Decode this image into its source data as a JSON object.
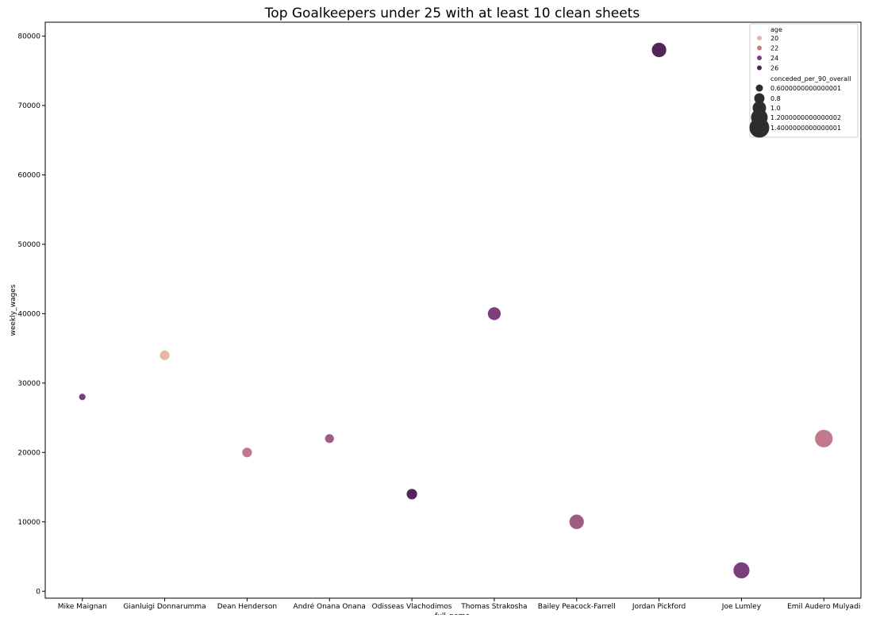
{
  "chart_data": {
    "type": "scatter",
    "title": "Top Goalkeepers under 25 with at least 10 clean sheets",
    "xlabel": "full_name",
    "ylabel": "weekly_wages",
    "ylim": [
      -1000,
      82000
    ],
    "yticks": [
      0,
      10000,
      20000,
      30000,
      40000,
      50000,
      60000,
      70000,
      80000
    ],
    "ytick_labels": [
      "0",
      "10000",
      "20000",
      "30000",
      "40000",
      "50000",
      "60000",
      "70000",
      "80000"
    ],
    "categories": [
      "Mike Maignan",
      "Gianluigi Donnarumma",
      "Dean Henderson",
      "André Onana Onana",
      "Odisseas Vlachodimos",
      "Thomas Strakosha",
      "Bailey Peacock-Farrell",
      "Jordan Pickford",
      "Joe Lumley",
      "Emil Audero Mulyadi"
    ],
    "points": [
      {
        "full_name": "Mike Maignan",
        "weekly_wages": 28000,
        "age": 24,
        "conceded_per_90_overall": 0.6
      },
      {
        "full_name": "Gianluigi Donnarumma",
        "weekly_wages": 34000,
        "age": 20,
        "conceded_per_90_overall": 0.8
      },
      {
        "full_name": "Dean Henderson",
        "weekly_wages": 20000,
        "age": 22,
        "conceded_per_90_overall": 0.8
      },
      {
        "full_name": "André Onana Onana",
        "weekly_wages": 22000,
        "age": 23,
        "conceded_per_90_overall": 0.75
      },
      {
        "full_name": "Odisseas Vlachodimos",
        "weekly_wages": 14000,
        "age": 25,
        "conceded_per_90_overall": 0.85
      },
      {
        "full_name": "Thomas Strakosha",
        "weekly_wages": 40000,
        "age": 24,
        "conceded_per_90_overall": 1.0
      },
      {
        "full_name": "Bailey Peacock-Farrell",
        "weekly_wages": 10000,
        "age": 23,
        "conceded_per_90_overall": 1.1
      },
      {
        "full_name": "Jordan Pickford",
        "weekly_wages": 78000,
        "age": 25,
        "conceded_per_90_overall": 1.1
      },
      {
        "full_name": "Joe Lumley",
        "weekly_wages": 3000,
        "age": 24,
        "conceded_per_90_overall": 1.2
      },
      {
        "full_name": "Emil Audero Mulyadi",
        "weekly_wages": 22000,
        "age": 22,
        "conceded_per_90_overall": 1.3
      }
    ],
    "legend": {
      "placement": "top-right",
      "hue_title": "age",
      "hue_entries": [
        {
          "label": "20",
          "age": 20
        },
        {
          "label": "22",
          "age": 22
        },
        {
          "label": "24",
          "age": 24
        },
        {
          "label": "26",
          "age": 26
        }
      ],
      "size_title": "conceded_per_90_overall",
      "size_entries": [
        {
          "label": "0.6000000000000001",
          "value": 0.6
        },
        {
          "label": "0.8",
          "value": 0.8
        },
        {
          "label": "1.0",
          "value": 1.0
        },
        {
          "label": "1.2000000000000002",
          "value": 1.2
        },
        {
          "label": "1.4000000000000001",
          "value": 1.4
        }
      ]
    },
    "hue_colors": [
      {
        "age": 20,
        "color": "#e8b6a5"
      },
      {
        "age": 22,
        "color": "#c2798e"
      },
      {
        "age": 23,
        "color": "#9f5a86"
      },
      {
        "age": 24,
        "color": "#7b3f7d"
      },
      {
        "age": 25,
        "color": "#51275a"
      },
      {
        "age": 26,
        "color": "#4a2557"
      }
    ],
    "size_legend_color": "#2d2d2d",
    "grid": false
  }
}
